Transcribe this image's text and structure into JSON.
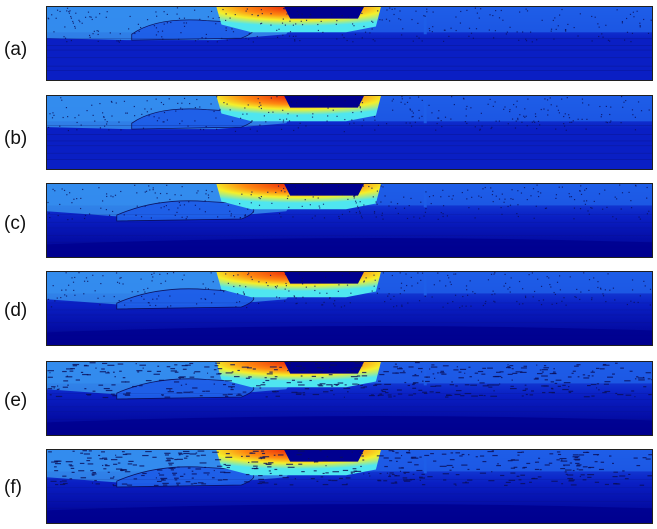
{
  "figure": {
    "panels": [
      {
        "label": "(a)",
        "variant": "a"
      },
      {
        "label": "(b)",
        "variant": "b"
      },
      {
        "label": "(c)",
        "variant": "c"
      },
      {
        "label": "(d)",
        "variant": "d"
      },
      {
        "label": "(e)",
        "variant": "e"
      },
      {
        "label": "(f)",
        "variant": "f"
      }
    ]
  },
  "colors": {
    "deep_blue": "#00008f",
    "blue": "#0a1fc4",
    "mid_blue": "#1e5ee8",
    "light_blue": "#3b9cf0",
    "cyan": "#4fe6f0",
    "yellow": "#f5f02a",
    "orange": "#ff8a10",
    "red": "#e81a0a",
    "dark_navy": "#0a0f5a"
  }
}
